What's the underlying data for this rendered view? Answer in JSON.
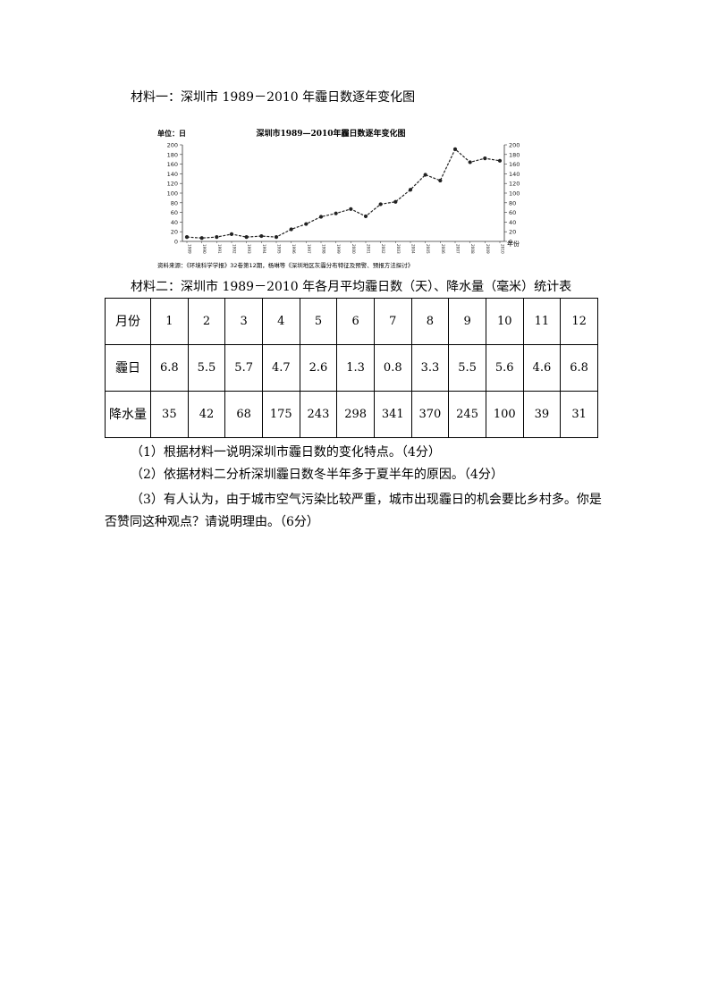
{
  "material1": {
    "heading": "材料一：深圳市 1989－2010 年霾日数逐年变化图"
  },
  "chart_data": {
    "type": "line",
    "title": "深圳市1989—2010年霾日数逐年变化图",
    "ylabel": "单位：日",
    "xlabel": "年份",
    "source": "资料来源：《环境科学学报》32卷第12期，杨琳等《深圳地区灰霾分布特征及预警、预报方法探讨》",
    "x": [
      "1989",
      "1990",
      "1991",
      "1992",
      "1993",
      "1994",
      "1995",
      "1996",
      "1997",
      "1998",
      "1999",
      "2000",
      "2001",
      "2002",
      "2003",
      "2004",
      "2005",
      "2006",
      "2007",
      "2008",
      "2009",
      "2010"
    ],
    "values": [
      9,
      7,
      9,
      15,
      9,
      11,
      9,
      25,
      36,
      51,
      58,
      67,
      52,
      77,
      82,
      107,
      138,
      126,
      191,
      164,
      172,
      167
    ],
    "ylim": [
      0,
      200
    ],
    "yticks": [
      0,
      20,
      40,
      60,
      80,
      100,
      120,
      140,
      160,
      180,
      200
    ]
  },
  "material2": {
    "heading": "材料二：深圳市 1989－2010 年各月平均霾日数（天）、降水量（毫米）统计表"
  },
  "table": {
    "row_headers": [
      "月份",
      "霾日",
      "降水量"
    ],
    "months": [
      "1",
      "2",
      "3",
      "4",
      "5",
      "6",
      "7",
      "8",
      "9",
      "10",
      "11",
      "12"
    ],
    "haze_days": [
      "6.8",
      "5.5",
      "5.7",
      "4.7",
      "2.6",
      "1.3",
      "0.8",
      "3.3",
      "5.5",
      "5.6",
      "4.6",
      "6.8"
    ],
    "precipitation": [
      "35",
      "42",
      "68",
      "175",
      "243",
      "298",
      "341",
      "370",
      "245",
      "100",
      "39",
      "31"
    ]
  },
  "questions": {
    "q1": "（1）根据材料一说明深圳市霾日数的变化特点。（4分）",
    "q2": "（2）依据材料二分析深圳霾日数冬半年多于夏半年的原因。（4分）",
    "q3_line1": "（3）有人认为，由于城市空气污染比较严重，城市出现霾日的机会要比乡村多。你是",
    "q3_line2": "否赞同这种观点？请说明理由。（6分）"
  }
}
